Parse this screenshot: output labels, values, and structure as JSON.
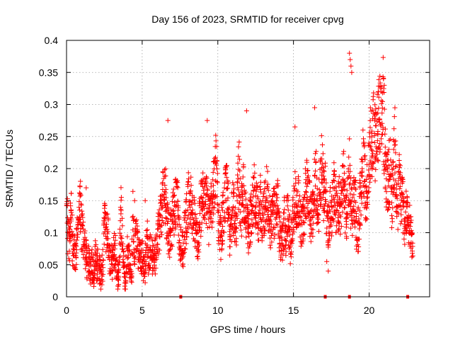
{
  "chart_data": {
    "type": "scatter",
    "title": "Day 156 of 2023, SRMTID for receiver cpvg",
    "xlabel": "GPS time / hours",
    "ylabel": "SRMTID / TECUs",
    "xlim": [
      0,
      24
    ],
    "ylim": [
      0,
      0.4
    ],
    "xticks": [
      0,
      5,
      10,
      15,
      20
    ],
    "xtick_labels": [
      "0",
      "5",
      "10",
      "15",
      "20"
    ],
    "yticks": [
      0,
      0.05,
      0.1,
      0.15,
      0.2,
      0.25,
      0.3,
      0.35,
      0.4
    ],
    "ytick_labels": [
      "0",
      "0.05",
      "0.1",
      "0.15",
      "0.2",
      "0.25",
      "0.3",
      "0.35",
      "0.4"
    ],
    "grid": true,
    "marker": "plus",
    "color": "#ff0000",
    "series": [
      {
        "name": "SRMTID",
        "x": [
          0.0,
          0.1,
          0.2,
          0.3,
          0.4,
          0.5,
          0.6,
          0.7,
          0.8,
          0.9,
          1.0,
          1.1,
          1.2,
          1.3,
          1.4,
          1.5,
          1.6,
          1.7,
          1.8,
          1.9,
          2.0,
          2.1,
          2.2,
          2.3,
          2.4,
          2.5,
          2.6,
          2.7,
          2.8,
          2.9,
          3.0,
          3.1,
          3.2,
          3.3,
          3.4,
          3.5,
          3.6,
          3.7,
          3.8,
          3.9,
          4.0,
          4.1,
          4.2,
          4.3,
          4.4,
          4.5,
          4.6,
          4.7,
          4.8,
          4.9,
          5.0,
          5.1,
          5.2,
          5.3,
          5.4,
          5.5,
          5.6,
          5.7,
          5.8,
          5.9,
          6.0,
          6.1,
          6.2,
          6.3,
          6.4,
          6.5,
          6.6,
          6.7,
          6.8,
          6.9,
          7.0,
          7.1,
          7.2,
          7.3,
          7.4,
          7.5,
          7.6,
          7.7,
          7.8,
          7.9,
          8.0,
          8.1,
          8.2,
          8.3,
          8.4,
          8.5,
          8.6,
          8.7,
          8.8,
          8.9,
          9.0,
          9.1,
          9.2,
          9.3,
          9.4,
          9.5,
          9.6,
          9.7,
          9.8,
          9.9,
          10.0,
          10.1,
          10.2,
          10.3,
          10.4,
          10.5,
          10.6,
          10.7,
          10.8,
          10.9,
          11.0,
          11.1,
          11.2,
          11.3,
          11.4,
          11.5,
          11.6,
          11.7,
          11.8,
          11.9,
          12.0,
          12.1,
          12.2,
          12.3,
          12.4,
          12.5,
          12.6,
          12.7,
          12.8,
          12.9,
          13.0,
          13.1,
          13.2,
          13.3,
          13.4,
          13.5,
          13.6,
          13.7,
          13.8,
          13.9,
          14.0,
          14.1,
          14.2,
          14.3,
          14.4,
          14.5,
          14.6,
          14.7,
          14.8,
          14.9,
          15.0,
          15.1,
          15.2,
          15.3,
          15.4,
          15.5,
          15.6,
          15.7,
          15.8,
          15.9,
          16.0,
          16.1,
          16.2,
          16.3,
          16.4,
          16.5,
          16.6,
          16.7,
          16.8,
          16.9,
          17.0,
          17.1,
          17.2,
          17.3,
          17.4,
          17.5,
          17.6,
          17.7,
          17.8,
          17.9,
          18.0,
          18.1,
          18.2,
          18.3,
          18.4,
          18.5,
          18.6,
          18.7,
          18.8,
          18.9,
          19.0,
          19.1,
          19.2,
          19.3,
          19.4,
          19.5,
          19.6,
          19.7,
          19.8,
          19.9,
          20.0,
          20.1,
          20.2,
          20.3,
          20.4,
          20.5,
          20.6,
          20.7,
          20.8,
          20.9,
          21.0,
          21.1,
          21.2,
          21.3,
          21.4,
          21.5,
          21.6,
          21.7,
          21.8,
          21.9,
          22.0,
          22.1,
          22.2,
          22.3,
          22.4,
          22.5,
          22.6,
          22.7,
          22.8
        ],
        "y": [
          0.15,
          0.09,
          0.08,
          0.13,
          0.08,
          0.07,
          0.06,
          0.09,
          0.11,
          0.15,
          0.1,
          0.09,
          0.08,
          0.06,
          0.05,
          0.06,
          0.04,
          0.05,
          0.04,
          0.06,
          0.05,
          0.05,
          0.04,
          0.03,
          0.05,
          0.12,
          0.09,
          0.11,
          0.07,
          0.06,
          0.05,
          0.07,
          0.08,
          0.04,
          0.03,
          0.06,
          0.13,
          0.08,
          0.04,
          0.03,
          0.07,
          0.06,
          0.05,
          0.04,
          0.14,
          0.06,
          0.1,
          0.08,
          0.06,
          0.07,
          0.06,
          0.05,
          0.04,
          0.12,
          0.06,
          0.07,
          0.08,
          0.06,
          0.05,
          0.07,
          0.09,
          0.1,
          0.12,
          0.14,
          0.16,
          0.18,
          0.13,
          0.11,
          0.09,
          0.1,
          0.12,
          0.13,
          0.15,
          0.17,
          0.11,
          0.09,
          0.08,
          0.07,
          0.1,
          0.12,
          0.14,
          0.16,
          0.15,
          0.13,
          0.12,
          0.11,
          0.1,
          0.09,
          0.12,
          0.14,
          0.15,
          0.17,
          0.16,
          0.14,
          0.12,
          0.13,
          0.14,
          0.17,
          0.19,
          0.23,
          0.13,
          0.11,
          0.09,
          0.12,
          0.14,
          0.16,
          0.17,
          0.13,
          0.08,
          0.12,
          0.14,
          0.13,
          0.1,
          0.15,
          0.2,
          0.12,
          0.14,
          0.17,
          0.12,
          0.13,
          0.1,
          0.11,
          0.13,
          0.15,
          0.17,
          0.13,
          0.14,
          0.12,
          0.15,
          0.13,
          0.12,
          0.14,
          0.16,
          0.15,
          0.13,
          0.11,
          0.12,
          0.13,
          0.14,
          0.15,
          0.13,
          0.09,
          0.07,
          0.1,
          0.12,
          0.1,
          0.14,
          0.11,
          0.08,
          0.1,
          0.14,
          0.16,
          0.13,
          0.15,
          0.14,
          0.1,
          0.12,
          0.13,
          0.16,
          0.18,
          0.17,
          0.13,
          0.12,
          0.14,
          0.17,
          0.18,
          0.11,
          0.15,
          0.19,
          0.21,
          0.16,
          0.17,
          0.12,
          0.11,
          0.14,
          0.13,
          0.15,
          0.17,
          0.14,
          0.12,
          0.15,
          0.13,
          0.16,
          0.19,
          0.15,
          0.12,
          0.16,
          0.2,
          0.14,
          0.13,
          0.16,
          0.15,
          0.09,
          0.11,
          0.15,
          0.19,
          0.22,
          0.18,
          0.15,
          0.17,
          0.23,
          0.25,
          0.22,
          0.29,
          0.24,
          0.25,
          0.28,
          0.3,
          0.27,
          0.33,
          0.24,
          0.2,
          0.17,
          0.19,
          0.21,
          0.14,
          0.2,
          0.24,
          0.16,
          0.14,
          0.18,
          0.15,
          0.16,
          0.12,
          0.12,
          0.13,
          0.1,
          0.11,
          0.09
        ],
        "extra_points": [
          [
            18.7,
            0.38
          ],
          [
            18.75,
            0.37
          ],
          [
            18.8,
            0.36
          ],
          [
            18.85,
            0.35
          ],
          [
            20.95,
            0.34
          ],
          [
            21.0,
            0.33
          ],
          [
            20.6,
            0.32
          ],
          [
            16.4,
            0.295
          ],
          [
            6.7,
            0.275
          ],
          [
            9.3,
            0.275
          ],
          [
            11.9,
            0.29
          ],
          [
            15.1,
            0.265
          ],
          [
            17.2,
            0.055
          ],
          [
            17.3,
            0.04
          ],
          [
            0.15,
            0.12
          ],
          [
            0.25,
            0.11
          ],
          [
            1.3,
            0.17
          ],
          [
            2.6,
            0.13
          ],
          [
            4.5,
            0.15
          ],
          [
            5.2,
            0.15
          ]
        ]
      }
    ]
  },
  "axis_marks": {
    "x_bottom_markers_hours": [
      7.55,
      17.1,
      18.7,
      22.55
    ]
  }
}
